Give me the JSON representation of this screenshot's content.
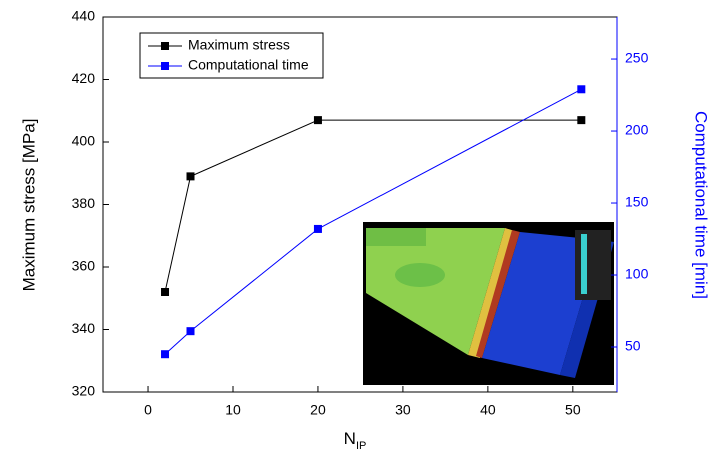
{
  "chart_data": {
    "type": "line",
    "x_label": {
      "main": "N",
      "sub": "IP"
    },
    "y_label": "Maximum stress [MPa]",
    "y2_label": "Computational time [min]",
    "x": [
      2,
      5,
      20,
      51
    ],
    "series": [
      {
        "name": "Maximum stress",
        "color": "#000000",
        "values": [
          352,
          389,
          407,
          407
        ]
      },
      {
        "name": "Computational time",
        "color": "#0000ff",
        "axis": "y2",
        "values": [
          45,
          61,
          132,
          229
        ]
      }
    ],
    "xlim": [
      -5.3,
      55.2
    ],
    "xticks": [
      0,
      10,
      20,
      30,
      40,
      50
    ],
    "ylim": [
      320,
      440
    ],
    "yticks": [
      320,
      340,
      360,
      380,
      400,
      420,
      440
    ],
    "y2lim": [
      18.75,
      279.2
    ],
    "y2ticks": [
      50,
      100,
      150,
      200,
      250
    ],
    "legend": "upper left",
    "y2_color": "#0000ff"
  }
}
